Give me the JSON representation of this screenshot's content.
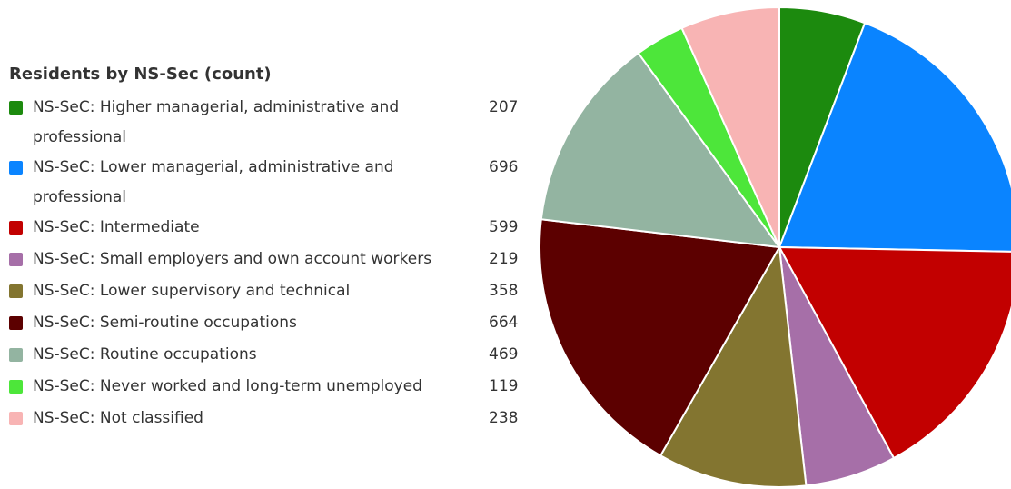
{
  "chart_data": {
    "type": "pie",
    "title": "Residents by NS-Sec (count)",
    "legend_position": "left",
    "categories": [
      "NS-SeC: Higher managerial, administrative and professional",
      "NS-SeC: Lower managerial, administrative and professional",
      "NS-SeC: Intermediate",
      "NS-SeC: Small employers and own account workers",
      "NS-SeC: Lower supervisory and technical",
      "NS-SeC: Semi-routine occupations",
      "NS-SeC: Routine occupations",
      "NS-SeC: Never worked and long-term unemployed",
      "NS-SeC: Not classified"
    ],
    "values": [
      207,
      696,
      599,
      219,
      358,
      664,
      469,
      119,
      238
    ],
    "colors": [
      "#1c8a0e",
      "#0a84ff",
      "#c20000",
      "#a66fa8",
      "#837530",
      "#5c0000",
      "#93b4a1",
      "#4de63a",
      "#f8b4b4"
    ]
  }
}
